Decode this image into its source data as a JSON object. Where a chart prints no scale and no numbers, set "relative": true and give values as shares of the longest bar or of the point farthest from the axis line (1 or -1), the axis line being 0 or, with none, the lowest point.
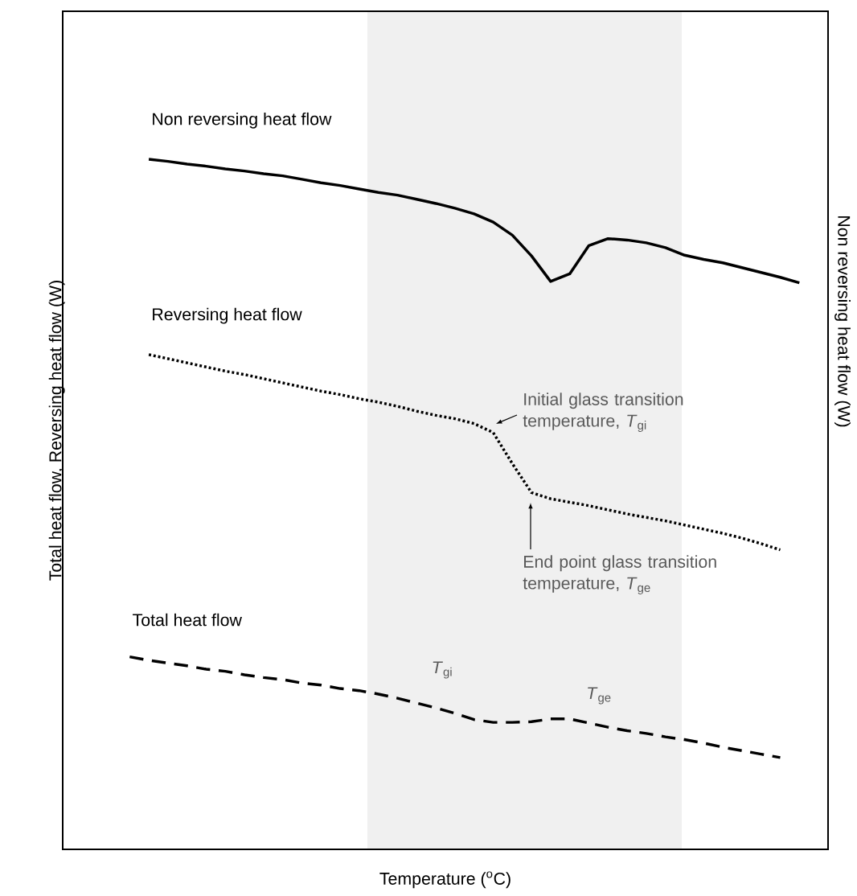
{
  "chart_data": {
    "type": "line",
    "relative": true,
    "xlabel": "Temperature ($^{o}$C)",
    "ylabel": "Total heat flow, Reversing heat flow (W)",
    "y2label": "Non reversing heat flow (W)",
    "tick_labels": false,
    "categories": [
      null,
      null,
      null,
      null,
      null,
      null,
      null,
      null,
      null,
      null,
      null,
      null,
      null,
      null,
      null,
      null,
      null,
      null,
      null,
      null,
      null,
      null,
      null,
      null,
      null,
      null,
      null,
      null,
      null,
      null,
      null,
      null,
      null,
      null,
      null,
      null,
      null,
      null,
      null,
      null
    ],
    "series": [
      {
        "name": "Non reversing heat flow",
        "color": "#000000",
        "line_style": "solid",
        "values": [
          null,
          null,
          null,
          null,
          1.0,
          0.997,
          0.993,
          0.99,
          0.986,
          0.983,
          0.979,
          0.976,
          0.971,
          0.966,
          0.962,
          0.957,
          0.952,
          0.948,
          0.942,
          0.936,
          0.929,
          0.921,
          0.909,
          0.89,
          0.86,
          0.823,
          0.834,
          0.875,
          0.885,
          0.883,
          0.879,
          0.872,
          0.861,
          0.855,
          0.85,
          0.843,
          0.836,
          0.829,
          0.821,
          null
        ]
      },
      {
        "name": "Reversing heat flow",
        "color": "#000000",
        "line_style": "dotted",
        "values": [
          null,
          null,
          null,
          null,
          0.717,
          0.711,
          0.705,
          0.699,
          0.693,
          0.688,
          0.682,
          0.676,
          0.67,
          0.664,
          0.659,
          0.653,
          0.648,
          0.642,
          0.635,
          0.629,
          0.624,
          0.617,
          0.604,
          0.559,
          0.517,
          0.508,
          0.503,
          0.498,
          0.492,
          0.486,
          0.481,
          0.476,
          0.47,
          0.464,
          0.458,
          0.451,
          0.443,
          0.434,
          null,
          null
        ]
      },
      {
        "name": "Total heat flow",
        "color": "#000000",
        "line_style": "dashed",
        "values": [
          null,
          null,
          null,
          0.279,
          0.274,
          0.27,
          0.266,
          0.261,
          0.258,
          0.253,
          0.249,
          0.246,
          0.241,
          0.238,
          0.233,
          0.23,
          0.225,
          0.219,
          0.212,
          0.205,
          0.197,
          0.188,
          0.184,
          0.184,
          0.185,
          0.189,
          0.189,
          0.183,
          0.177,
          0.172,
          0.168,
          0.163,
          0.159,
          0.154,
          0.148,
          0.143,
          0.138,
          0.133,
          null,
          null
        ]
      }
    ],
    "annotations": [
      "Initial glass transition temperature, *T*$_{gi}$",
      "End point glass transition temperature, *T*$_{ge}$",
      "*T*$_{gi}$",
      "*T*$_{ge}$"
    ]
  }
}
